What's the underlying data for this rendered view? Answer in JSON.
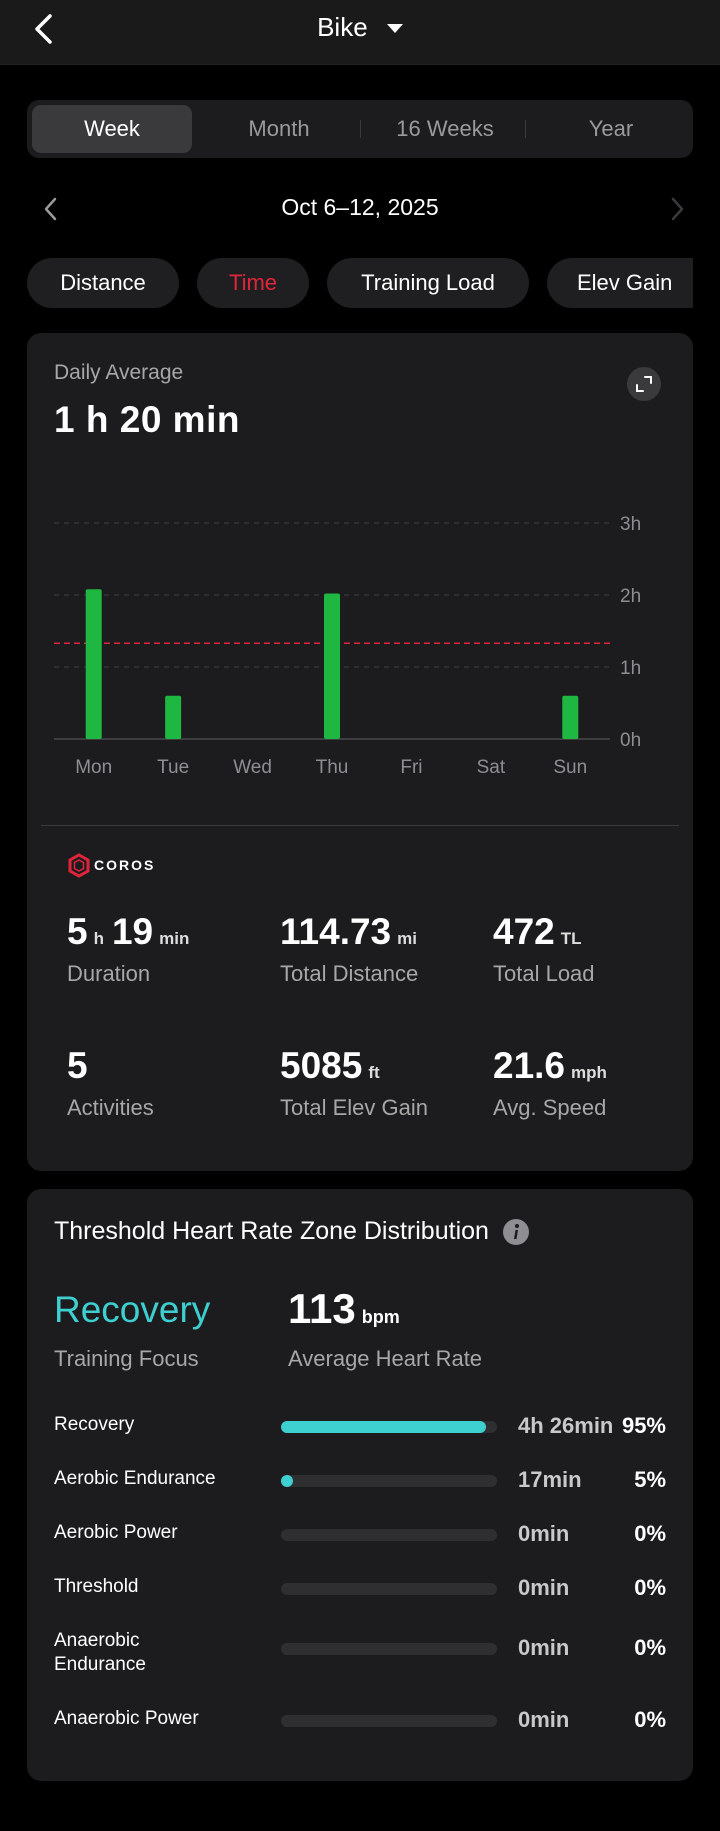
{
  "header": {
    "back_icon": "chevron-left-icon",
    "title": "Bike",
    "dropdown_icon": "caret-down-icon"
  },
  "period_tabs": [
    {
      "label": "Week",
      "active": true
    },
    {
      "label": "Month",
      "active": false
    },
    {
      "label": "16 Weeks",
      "active": false
    },
    {
      "label": "Year",
      "active": false
    }
  ],
  "date_nav": {
    "label": "Oct 6–12, 2025",
    "prev_icon": "chevron-left-icon",
    "next_icon": "chevron-right-icon"
  },
  "metric_chips": [
    {
      "label": "Distance",
      "active": false
    },
    {
      "label": "Time",
      "active": true
    },
    {
      "label": "Training Load",
      "active": false
    },
    {
      "label": "Elev Gain",
      "active": false
    }
  ],
  "summary": {
    "daily_label": "Daily Average",
    "daily_value": "1 h 20 min",
    "expand_icon": "expand-icon"
  },
  "chart_data": {
    "type": "bar",
    "categories": [
      "Mon",
      "Tue",
      "Wed",
      "Thu",
      "Fri",
      "Sat",
      "Sun"
    ],
    "values": [
      2.08,
      0.6,
      0,
      2.02,
      0,
      0,
      0.6
    ],
    "unit": "hours",
    "y_tick_labels": [
      "0h",
      "1h",
      "2h",
      "3h"
    ],
    "ylim": [
      0,
      3
    ],
    "average_line": 1.33,
    "grid": true,
    "colors": {
      "bar": "#1db741",
      "average": "#e0243b"
    }
  },
  "brand": {
    "logo_text": "COROS"
  },
  "stats": [
    {
      "value": "5",
      "unit": "h",
      "value2": "19",
      "unit2": "min",
      "label": "Duration"
    },
    {
      "value": "114.73",
      "unit": "mi",
      "label": "Total Distance"
    },
    {
      "value": "472",
      "unit": "TL",
      "label": "Total Load"
    },
    {
      "value": "5",
      "unit": "",
      "label": "Activities"
    },
    {
      "value": "5085",
      "unit": "ft",
      "label": "Total Elev Gain"
    },
    {
      "value": "21.6",
      "unit": "mph",
      "label": "Avg. Speed"
    }
  ],
  "hr_zones": {
    "title": "Threshold Heart Rate Zone Distribution",
    "info_icon": "info-icon",
    "focus_value": "Recovery",
    "focus_label": "Training Focus",
    "avg_hr_value": "113",
    "avg_hr_unit": "bpm",
    "avg_hr_label": "Average Heart Rate",
    "zones": [
      {
        "name": "Recovery",
        "time": "4h 26min",
        "pct": "95%",
        "fraction": 0.95
      },
      {
        "name": "Aerobic Endurance",
        "time": "17min",
        "pct": "5%",
        "fraction": 0.05
      },
      {
        "name": "Aerobic Power",
        "time": "0min",
        "pct": "0%",
        "fraction": 0
      },
      {
        "name": "Threshold",
        "time": "0min",
        "pct": "0%",
        "fraction": 0
      },
      {
        "name": "Anaerobic Endurance",
        "time": "0min",
        "pct": "0%",
        "fraction": 0
      },
      {
        "name": "Anaerobic Power",
        "time": "0min",
        "pct": "0%",
        "fraction": 0
      }
    ],
    "colors": {
      "fill": "#3ecfd0",
      "track": "#2f2f31"
    }
  }
}
